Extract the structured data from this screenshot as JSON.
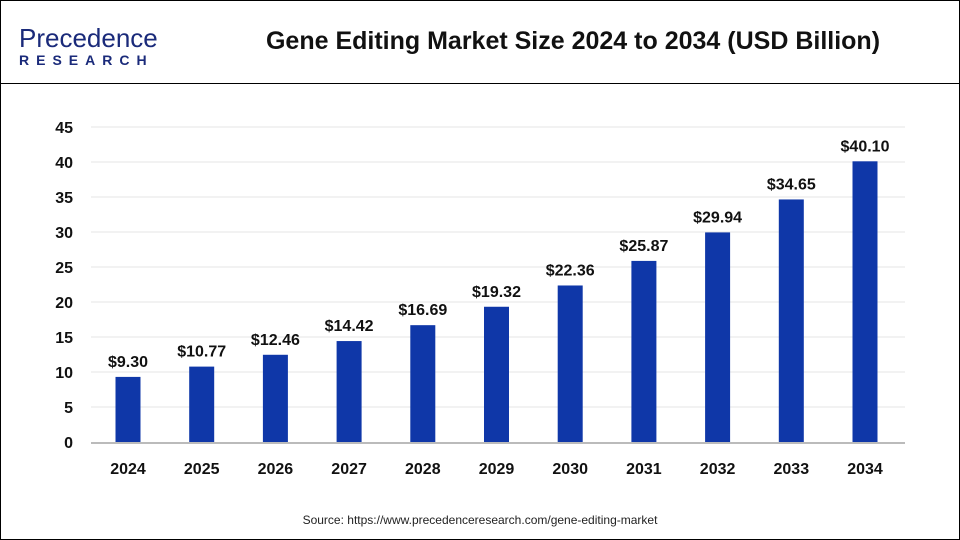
{
  "header": {
    "logo_line1": "Precedence",
    "logo_line2": "RESEARCH",
    "title": "Gene Editing Market Size 2024 to 2034 (USD Billion)"
  },
  "source": "Source: https://www.precedenceresearch.com/gene-editing-market",
  "chart_data": {
    "type": "bar",
    "title": "Gene Editing Market Size 2024 to 2034 (USD Billion)",
    "categories": [
      "2024",
      "2025",
      "2026",
      "2027",
      "2028",
      "2029",
      "2030",
      "2031",
      "2032",
      "2033",
      "2034"
    ],
    "values": [
      9.3,
      10.77,
      12.46,
      14.42,
      16.69,
      19.32,
      22.36,
      25.87,
      29.94,
      34.65,
      40.1
    ],
    "data_labels": [
      "$9.30",
      "$10.77",
      "$12.46",
      "$14.42",
      "$16.69",
      "$19.32",
      "$22.36",
      "$25.87",
      "$29.94",
      "$34.65",
      "$40.10"
    ],
    "yticks": [
      "0",
      "5",
      "10",
      "15",
      "20",
      "25",
      "30",
      "35",
      "40",
      "45"
    ],
    "ylim": [
      0,
      45
    ],
    "grid": true,
    "bar_color": "#0f37a8",
    "xlabel": "",
    "ylabel": ""
  }
}
